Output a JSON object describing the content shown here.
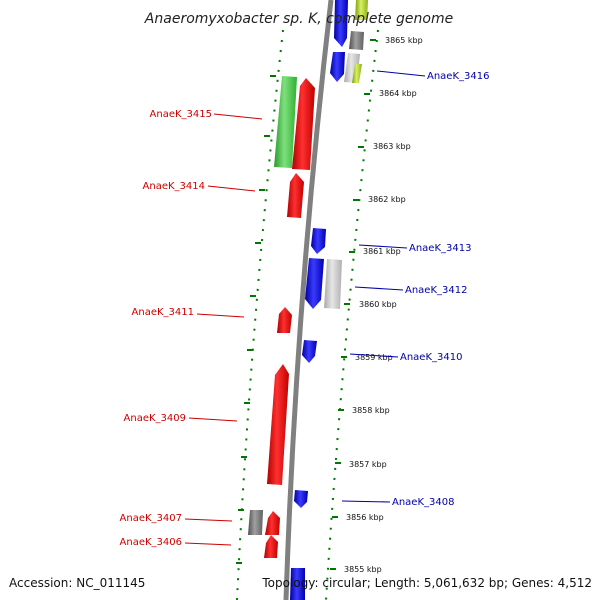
{
  "title": "Anaeromyxobacter sp. K, complete genome",
  "accession": "Accession: NC_011145",
  "topology": "Topology: circular; Length: 5,061,632 bp; Genes: 4,512",
  "colors": {
    "reverse_strand": "#ff0000",
    "forward_strand": "#0000ff",
    "rna": "#33cc33",
    "pseudo_gray": "#808080",
    "light_gray": "#c8c8c8",
    "backbone": "#808080",
    "ticks": "#007700",
    "label_red": "#cc0000",
    "label_blue": "#0000aa"
  },
  "scale_labels": [
    "3865 kbp",
    "3864 kbp",
    "3863 kbp",
    "3862 kbp",
    "3861 kbp",
    "3860 kbp",
    "3859 kbp",
    "3858 kbp",
    "3857 kbp",
    "3856 kbp",
    "3855 kbp"
  ],
  "gene_labels_left": [
    "AnaeK_3415",
    "AnaeK_3414",
    "AnaeK_3411",
    "AnaeK_3409",
    "AnaeK_3407",
    "AnaeK_3406"
  ],
  "gene_labels_right": [
    "AnaeK_3416",
    "AnaeK_3413",
    "AnaeK_3412",
    "AnaeK_3410",
    "AnaeK_3408"
  ]
}
